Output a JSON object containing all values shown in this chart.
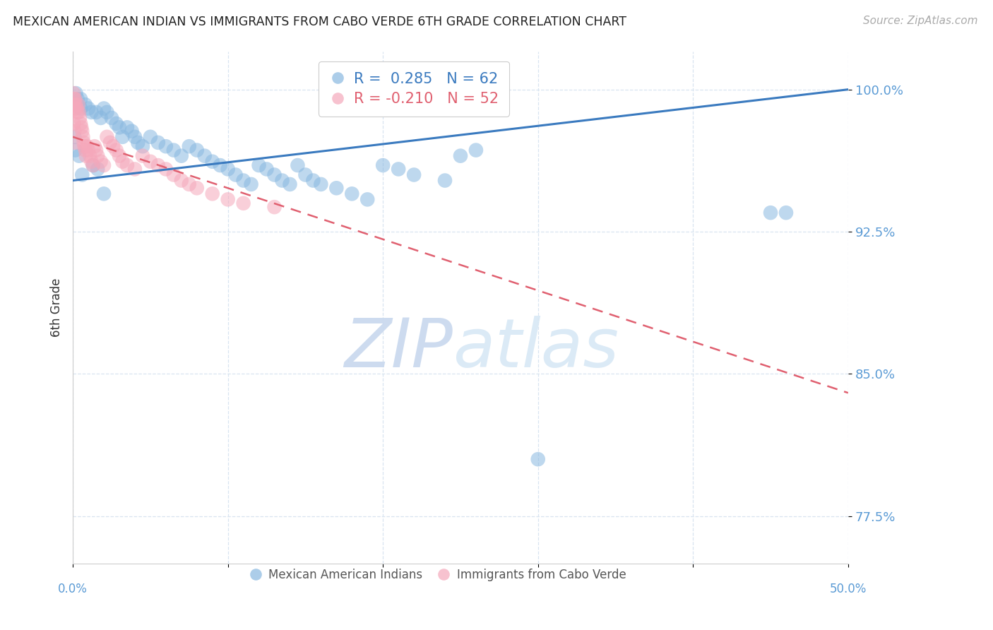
{
  "title": "MEXICAN AMERICAN INDIAN VS IMMIGRANTS FROM CABO VERDE 6TH GRADE CORRELATION CHART",
  "source": "Source: ZipAtlas.com",
  "ylabel": "6th Grade",
  "y_ticks": [
    77.5,
    85.0,
    92.5,
    100.0
  ],
  "y_tick_labels": [
    "77.5%",
    "85.0%",
    "92.5%",
    "100.0%"
  ],
  "x_ticks": [
    0,
    10,
    20,
    30,
    40,
    50
  ],
  "xlim": [
    0.0,
    50.0
  ],
  "ylim": [
    75.0,
    102.0
  ],
  "legend_blue_label": "R =  0.285   N = 62",
  "legend_pink_label": "R = -0.210   N = 52",
  "watermark_left": "ZIP",
  "watermark_right": "atlas",
  "blue_color": "#89b8e0",
  "pink_color": "#f5a8bb",
  "blue_line_color": "#3a7abf",
  "pink_line_color": "#e06070",
  "axis_color": "#5b9bd5",
  "grid_color": "#d8e4f0",
  "blue_scatter": [
    [
      0.2,
      99.8
    ],
    [
      0.3,
      99.5
    ],
    [
      0.5,
      99.5
    ],
    [
      0.5,
      99.0
    ],
    [
      0.8,
      99.2
    ],
    [
      1.0,
      99.0
    ],
    [
      1.2,
      98.8
    ],
    [
      1.5,
      98.8
    ],
    [
      1.8,
      98.5
    ],
    [
      2.0,
      99.0
    ],
    [
      2.2,
      98.8
    ],
    [
      2.5,
      98.5
    ],
    [
      2.8,
      98.2
    ],
    [
      3.0,
      98.0
    ],
    [
      3.2,
      97.5
    ],
    [
      3.5,
      98.0
    ],
    [
      3.8,
      97.8
    ],
    [
      4.0,
      97.5
    ],
    [
      4.2,
      97.2
    ],
    [
      4.5,
      97.0
    ],
    [
      5.0,
      97.5
    ],
    [
      5.5,
      97.2
    ],
    [
      6.0,
      97.0
    ],
    [
      6.5,
      96.8
    ],
    [
      7.0,
      96.5
    ],
    [
      7.5,
      97.0
    ],
    [
      8.0,
      96.8
    ],
    [
      8.5,
      96.5
    ],
    [
      9.0,
      96.2
    ],
    [
      9.5,
      96.0
    ],
    [
      10.0,
      95.8
    ],
    [
      10.5,
      95.5
    ],
    [
      11.0,
      95.2
    ],
    [
      11.5,
      95.0
    ],
    [
      12.0,
      96.0
    ],
    [
      12.5,
      95.8
    ],
    [
      13.0,
      95.5
    ],
    [
      13.5,
      95.2
    ],
    [
      14.0,
      95.0
    ],
    [
      14.5,
      96.0
    ],
    [
      15.0,
      95.5
    ],
    [
      15.5,
      95.2
    ],
    [
      16.0,
      95.0
    ],
    [
      17.0,
      94.8
    ],
    [
      18.0,
      94.5
    ],
    [
      19.0,
      94.2
    ],
    [
      20.0,
      96.0
    ],
    [
      21.0,
      95.8
    ],
    [
      22.0,
      95.5
    ],
    [
      24.0,
      95.2
    ],
    [
      25.0,
      96.5
    ],
    [
      26.0,
      96.8
    ],
    [
      0.1,
      97.5
    ],
    [
      0.15,
      96.8
    ],
    [
      0.4,
      96.5
    ],
    [
      0.6,
      95.5
    ],
    [
      1.3,
      96.0
    ],
    [
      1.6,
      95.8
    ],
    [
      2.0,
      94.5
    ],
    [
      30.0,
      80.5
    ],
    [
      45.0,
      93.5
    ],
    [
      46.0,
      93.5
    ]
  ],
  "pink_scatter": [
    [
      0.05,
      99.8
    ],
    [
      0.08,
      99.5
    ],
    [
      0.1,
      99.2
    ],
    [
      0.12,
      99.0
    ],
    [
      0.15,
      99.5
    ],
    [
      0.2,
      99.2
    ],
    [
      0.25,
      99.0
    ],
    [
      0.3,
      98.8
    ],
    [
      0.35,
      99.2
    ],
    [
      0.4,
      98.8
    ],
    [
      0.45,
      98.5
    ],
    [
      0.5,
      98.2
    ],
    [
      0.55,
      98.0
    ],
    [
      0.6,
      97.8
    ],
    [
      0.65,
      97.5
    ],
    [
      0.7,
      97.2
    ],
    [
      0.75,
      97.0
    ],
    [
      0.8,
      96.8
    ],
    [
      0.85,
      96.5
    ],
    [
      0.9,
      97.0
    ],
    [
      1.0,
      96.8
    ],
    [
      1.1,
      96.5
    ],
    [
      1.2,
      96.2
    ],
    [
      1.3,
      96.0
    ],
    [
      1.4,
      97.0
    ],
    [
      1.5,
      96.8
    ],
    [
      1.6,
      96.5
    ],
    [
      1.8,
      96.2
    ],
    [
      2.0,
      96.0
    ],
    [
      2.2,
      97.5
    ],
    [
      2.4,
      97.2
    ],
    [
      2.6,
      97.0
    ],
    [
      2.8,
      96.8
    ],
    [
      3.0,
      96.5
    ],
    [
      3.2,
      96.2
    ],
    [
      3.5,
      96.0
    ],
    [
      4.0,
      95.8
    ],
    [
      4.5,
      96.5
    ],
    [
      5.0,
      96.2
    ],
    [
      5.5,
      96.0
    ],
    [
      6.0,
      95.8
    ],
    [
      6.5,
      95.5
    ],
    [
      7.0,
      95.2
    ],
    [
      7.5,
      95.0
    ],
    [
      8.0,
      94.8
    ],
    [
      9.0,
      94.5
    ],
    [
      10.0,
      94.2
    ],
    [
      11.0,
      94.0
    ],
    [
      13.0,
      93.8
    ],
    [
      0.05,
      98.2
    ],
    [
      0.1,
      97.8
    ],
    [
      0.18,
      97.2
    ]
  ],
  "blue_trend_x": [
    0.0,
    50.0
  ],
  "blue_trend_y": [
    95.2,
    100.0
  ],
  "pink_trend_x": [
    0.0,
    50.0
  ],
  "pink_trend_y": [
    97.5,
    84.0
  ]
}
